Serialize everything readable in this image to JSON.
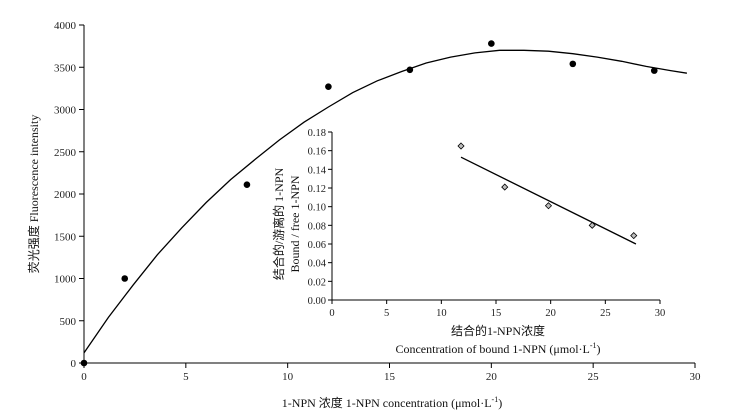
{
  "chart_data": [
    {
      "type": "scatter",
      "xlabel": "1-NPN 浓度 1-NPN concentration (μmol·L",
      "xlabel_sup": "-1",
      "xlabel_end": ")",
      "ylabel": "荧光强度 Fluorescence intensity",
      "xlim": [
        0,
        30
      ],
      "ylim": [
        0,
        4000
      ],
      "xticks": [
        "0",
        "5",
        "10",
        "15",
        "20",
        "25",
        "30"
      ],
      "yticks": [
        "0",
        "500",
        "1000",
        "1500",
        "2000",
        "2500",
        "3000",
        "3500",
        "4000"
      ],
      "series": [
        {
          "marker": "filled-circle",
          "x": [
            0,
            2,
            8,
            12,
            16,
            20,
            24,
            28
          ],
          "y": [
            0,
            1000,
            2110,
            3270,
            3470,
            3780,
            3540,
            3460
          ]
        }
      ],
      "fit_curve": {
        "type": "quadratic",
        "x": [
          0,
          1.2,
          2.4,
          3.6,
          4.8,
          6,
          7.2,
          8.4,
          9.6,
          10.8,
          12,
          13.2,
          14.4,
          15.6,
          16.8,
          18,
          19.2,
          20.4,
          21.6,
          22.8,
          24,
          25.2,
          26.4,
          27.6,
          28.8,
          29.6
        ],
        "y": [
          120,
          540,
          920,
          1280,
          1600,
          1900,
          2170,
          2410,
          2640,
          2850,
          3030,
          3200,
          3340,
          3450,
          3550,
          3620,
          3670,
          3700,
          3700,
          3690,
          3660,
          3620,
          3570,
          3510,
          3460,
          3430
        ]
      }
    },
    {
      "type": "scatter",
      "inset": true,
      "xlabel_cn": "结合的1-NPN浓度",
      "xlabel_en": "Concentration of bound 1-NPN (μmol·L",
      "xlabel_sup": "-1",
      "xlabel_end": ")",
      "ylabel_cn": "结合的/游离的 1-NPN",
      "ylabel_en": "Bound / free 1-NPN",
      "xlim": [
        0,
        30
      ],
      "ylim": [
        0,
        0.18
      ],
      "xticks": [
        "0",
        "5",
        "10",
        "15",
        "20",
        "25",
        "30"
      ],
      "yticks": [
        "0.00",
        "0.02",
        "0.04",
        "0.06",
        "0.08",
        "0.10",
        "0.12",
        "0.14",
        "0.16",
        "0.18"
      ],
      "series": [
        {
          "marker": "diamond",
          "x": [
            11.8,
            15.8,
            19.8,
            23.8,
            27.6
          ],
          "y": [
            0.165,
            0.121,
            0.101,
            0.08,
            0.069
          ]
        }
      ],
      "fit_line": {
        "x": [
          11.8,
          27.8
        ],
        "y": [
          0.153,
          0.06
        ]
      }
    }
  ]
}
